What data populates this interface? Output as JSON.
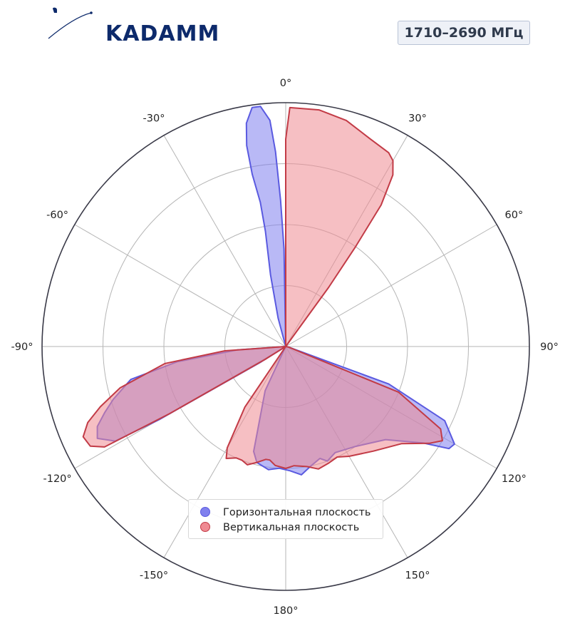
{
  "logo": {
    "text": "KADAMM"
  },
  "badge": {
    "text": "1710–2690 МГц"
  },
  "chart_data": {
    "type": "polar-area",
    "theta_direction": "clockwise",
    "theta_zero": "top",
    "theta_tick_labels": [
      "0°",
      "30°",
      "60°",
      "90°",
      "120°",
      "150°",
      "180°",
      "-150°",
      "-120°",
      "-90°",
      "-60°",
      "-30°"
    ],
    "theta_ticks_deg": [
      0,
      30,
      60,
      90,
      120,
      150,
      180,
      210,
      240,
      270,
      300,
      330
    ],
    "r_range": [
      0,
      1
    ],
    "r_grid": [
      0.25,
      0.5,
      0.75,
      1.0
    ],
    "grid": true,
    "legend_position": "bottom-center",
    "series": [
      {
        "name": "Горизонтальная плоскость",
        "color": "#5a5ae0",
        "fill": "#8080ee",
        "points": [
          [
            -20,
            0.0
          ],
          [
            -15,
            0.12
          ],
          [
            -12,
            0.3
          ],
          [
            -10,
            0.48
          ],
          [
            -10,
            0.6
          ],
          [
            -11,
            0.72
          ],
          [
            -11,
            0.84
          ],
          [
            -10,
            0.93
          ],
          [
            -8,
            0.99
          ],
          [
            -6,
            0.99
          ],
          [
            -4,
            0.93
          ],
          [
            -3,
            0.8
          ],
          [
            -2,
            0.6
          ],
          [
            -1,
            0.4
          ],
          [
            0,
            0.0
          ],
          [
            100,
            0.01
          ],
          [
            110,
            0.45
          ],
          [
            115,
            0.72
          ],
          [
            120,
            0.8
          ],
          [
            122,
            0.79
          ],
          [
            125,
            0.69
          ],
          [
            133,
            0.56
          ],
          [
            145,
            0.5
          ],
          [
            155,
            0.48
          ],
          [
            160,
            0.5
          ],
          [
            163,
            0.48
          ],
          [
            168,
            0.5
          ],
          [
            173,
            0.53
          ],
          [
            178,
            0.51
          ],
          [
            183,
            0.5
          ],
          [
            188,
            0.51
          ],
          [
            194,
            0.49
          ],
          [
            197,
            0.45
          ],
          [
            205,
            0.2
          ],
          [
            210,
            0.0
          ],
          [
            238,
            0.12
          ],
          [
            240,
            0.6
          ],
          [
            241,
            0.8
          ],
          [
            244,
            0.86
          ],
          [
            247,
            0.84
          ],
          [
            250,
            0.79
          ],
          [
            253,
            0.74
          ],
          [
            258,
            0.65
          ],
          [
            262,
            0.45
          ],
          [
            266,
            0.2
          ],
          [
            270,
            0.0
          ]
        ]
      },
      {
        "name": "Вертикальная плоскость",
        "color": "#c23b46",
        "fill": "#ef8a92",
        "points": [
          [
            0,
            0.0
          ],
          [
            0,
            0.5
          ],
          [
            0,
            0.85
          ],
          [
            1,
            0.98
          ],
          [
            8,
            0.98
          ],
          [
            15,
            0.96
          ],
          [
            22,
            0.92
          ],
          [
            28,
            0.9
          ],
          [
            30,
            0.88
          ],
          [
            32,
            0.83
          ],
          [
            34,
            0.7
          ],
          [
            35,
            0.5
          ],
          [
            36,
            0.3
          ],
          [
            40,
            0.0
          ],
          [
            100,
            0.01
          ],
          [
            112,
            0.5
          ],
          [
            118,
            0.72
          ],
          [
            121,
            0.75
          ],
          [
            124,
            0.71
          ],
          [
            130,
            0.62
          ],
          [
            140,
            0.56
          ],
          [
            150,
            0.52
          ],
          [
            155,
            0.5
          ],
          [
            160,
            0.51
          ],
          [
            165,
            0.52
          ],
          [
            170,
            0.5
          ],
          [
            176,
            0.49
          ],
          [
            180,
            0.5
          ],
          [
            185,
            0.49
          ],
          [
            188,
            0.47
          ],
          [
            190,
            0.47
          ],
          [
            194,
            0.49
          ],
          [
            198,
            0.51
          ],
          [
            201,
            0.5
          ],
          [
            204,
            0.5
          ],
          [
            208,
            0.52
          ],
          [
            210,
            0.48
          ],
          [
            214,
            0.3
          ],
          [
            220,
            0.0
          ],
          [
            238,
            0.1
          ],
          [
            240,
            0.55
          ],
          [
            241,
            0.85
          ],
          [
            243,
            0.9
          ],
          [
            246,
            0.91
          ],
          [
            249,
            0.87
          ],
          [
            252,
            0.8
          ],
          [
            256,
            0.7
          ],
          [
            262,
            0.5
          ],
          [
            266,
            0.25
          ],
          [
            270,
            0.0
          ]
        ]
      }
    ]
  }
}
